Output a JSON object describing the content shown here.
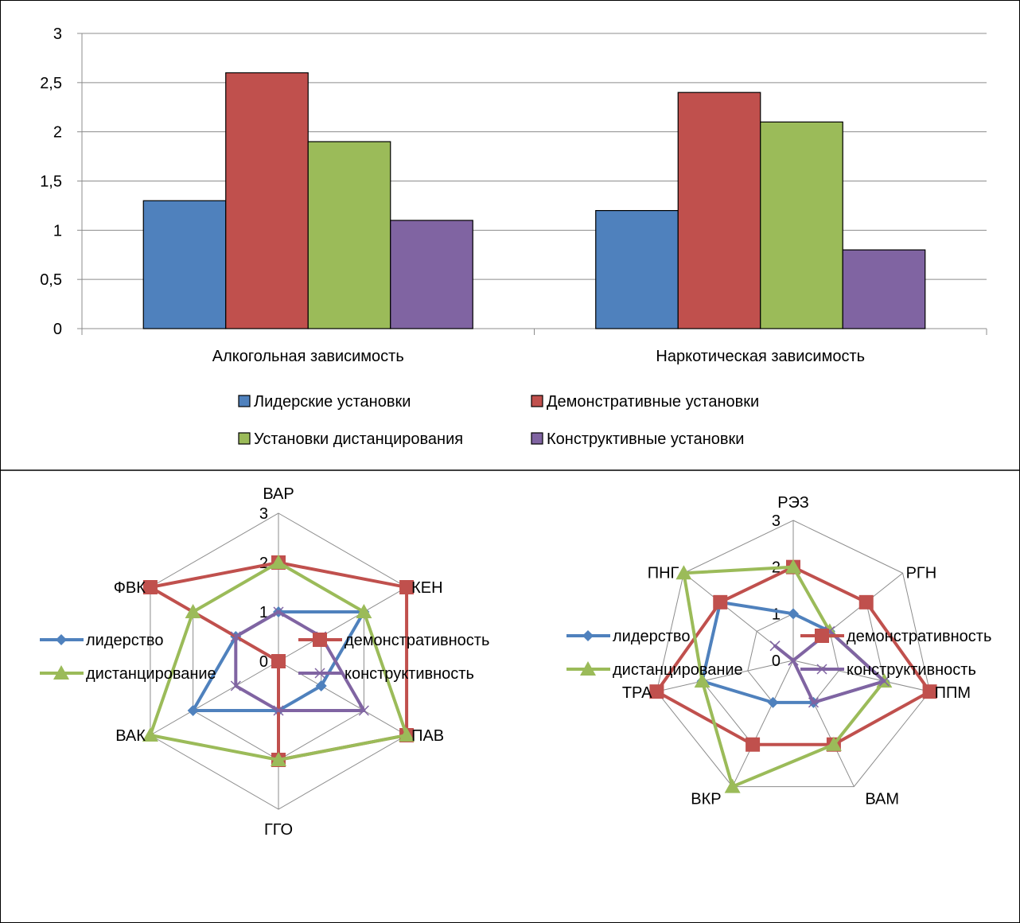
{
  "colors": {
    "blue": "#4f81bd",
    "red": "#c0504d",
    "green": "#9bbb59",
    "purple": "#8064a2",
    "grid": "#8c8c8c"
  },
  "chart_data": [
    {
      "type": "bar",
      "title": "",
      "xlabel": "",
      "ylabel": "",
      "categories": [
        "Алкогольная зависимость",
        "Наркотическая зависимость"
      ],
      "series": [
        {
          "name": "Лидерские установки",
          "color": "#4f81bd",
          "values": [
            1.3,
            1.2
          ]
        },
        {
          "name": "Демонстративные установки",
          "color": "#c0504d",
          "values": [
            2.6,
            2.4
          ]
        },
        {
          "name": "Установки дистанцирования",
          "color": "#9bbb59",
          "values": [
            1.9,
            2.1
          ]
        },
        {
          "name": "Конструктивные установки",
          "color": "#8064a2",
          "values": [
            1.1,
            0.8
          ]
        }
      ],
      "ylim": [
        0,
        3
      ],
      "yticks": [
        "0",
        "0,5",
        "1",
        "1,5",
        "2",
        "2,5",
        "3"
      ],
      "grid": true,
      "legend": "bottom"
    },
    {
      "type": "radar",
      "axes": [
        "ВАР",
        "КЕН",
        "ПАВ",
        "ГГО",
        "ВАК",
        "ФВК"
      ],
      "rlim": [
        0,
        3
      ],
      "rticks": [
        "0",
        "1",
        "2",
        "3"
      ],
      "series": [
        {
          "name": "лидерство",
          "color": "#4f81bd",
          "marker": "diamond",
          "values": [
            1,
            2,
            1,
            1,
            2,
            1
          ]
        },
        {
          "name": "демонстративность",
          "color": "#c0504d",
          "marker": "square",
          "values": [
            2,
            3,
            3,
            2,
            0,
            3
          ]
        },
        {
          "name": "дистанцирование",
          "color": "#9bbb59",
          "marker": "triangle",
          "values": [
            2,
            2,
            3,
            2,
            3,
            2
          ]
        },
        {
          "name": "конструктивность",
          "color": "#8064a2",
          "marker": "cross",
          "values": [
            1,
            1,
            2,
            1,
            1,
            1
          ]
        }
      ],
      "legend": "bottom"
    },
    {
      "type": "radar",
      "axes": [
        "РЭЗ",
        "РГН",
        "ППМ",
        "ВАМ",
        "ВКР",
        "ТРА",
        "ПНГ"
      ],
      "rlim": [
        0,
        3
      ],
      "rticks": [
        "0",
        "1",
        "2",
        "3"
      ],
      "series": [
        {
          "name": "лидерство",
          "color": "#4f81bd",
          "marker": "diamond",
          "values": [
            1,
            1,
            2,
            1,
            1,
            2,
            2
          ]
        },
        {
          "name": "демонстративность",
          "color": "#c0504d",
          "marker": "square",
          "values": [
            2,
            2,
            3,
            2,
            2,
            3,
            2
          ]
        },
        {
          "name": "дистанцирование",
          "color": "#9bbb59",
          "marker": "triangle",
          "values": [
            2,
            1,
            2,
            2,
            3,
            2,
            3
          ]
        },
        {
          "name": "конструктивность",
          "color": "#8064a2",
          "marker": "cross",
          "values": [
            0,
            1,
            2,
            1,
            0,
            0,
            0.5
          ]
        }
      ],
      "legend": "bottom"
    }
  ]
}
